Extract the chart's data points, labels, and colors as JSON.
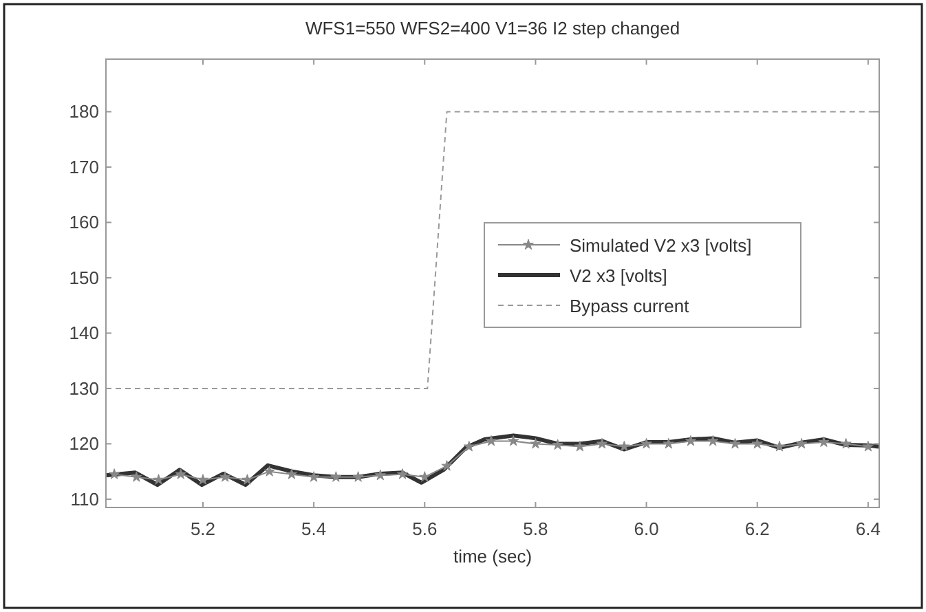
{
  "chart_data": {
    "type": "line",
    "title": "WFS1=550 WFS2=400 V1=36 I2 step changed",
    "xlabel": "time (sec)",
    "xlim": [
      5.025,
      6.42
    ],
    "xticks": [
      {
        "value": 5.2,
        "label": "5.2"
      },
      {
        "value": 5.4,
        "label": "5.4"
      },
      {
        "value": 5.6,
        "label": "5.6"
      },
      {
        "value": 5.8,
        "label": "5.8"
      },
      {
        "value": 6.0,
        "label": "6.0"
      },
      {
        "value": 6.2,
        "label": "6.2"
      },
      {
        "value": 6.4,
        "label": "6.4"
      }
    ],
    "ylim": [
      108.5,
      189.5
    ],
    "yticks": [
      110,
      120,
      130,
      140,
      150,
      160,
      170,
      180
    ],
    "grid": false,
    "legend": "right",
    "series": [
      {
        "name": "Simulated V2 x3 [volts]",
        "color": "#888888",
        "marker": "star",
        "line_style": "solid",
        "x": [
          5.04,
          5.08,
          5.12,
          5.16,
          5.2,
          5.24,
          5.28,
          5.32,
          5.36,
          5.4,
          5.44,
          5.48,
          5.52,
          5.56,
          5.6,
          5.64,
          5.68,
          5.72,
          5.76,
          5.8,
          5.84,
          5.88,
          5.92,
          5.96,
          6.0,
          6.04,
          6.08,
          6.12,
          6.16,
          6.2,
          6.24,
          6.28,
          6.32,
          6.36,
          6.4
        ],
        "values": [
          114.5,
          114,
          113.5,
          114.5,
          113.5,
          114,
          113.5,
          115,
          114.5,
          114,
          114,
          114,
          114.3,
          114.5,
          114,
          116,
          119.5,
          120.5,
          120.5,
          120,
          119.8,
          119.5,
          120,
          119.5,
          120,
          120,
          120.5,
          120.5,
          120,
          120,
          119.5,
          120,
          120.3,
          120,
          119.5
        ]
      },
      {
        "name": "V2 x3 [volts]",
        "color": "#333333",
        "marker": "none",
        "line_style": "solid",
        "x": [
          5.025,
          5.078,
          5.118,
          5.158,
          5.198,
          5.237,
          5.277,
          5.317,
          5.361,
          5.4,
          5.44,
          5.48,
          5.52,
          5.56,
          5.594,
          5.634,
          5.674,
          5.708,
          5.76,
          5.8,
          5.84,
          5.88,
          5.92,
          5.96,
          6.0,
          6.04,
          6.08,
          6.12,
          6.16,
          6.2,
          6.24,
          6.28,
          6.32,
          6.36,
          6.4,
          6.42
        ],
        "values": [
          114.3,
          114.8,
          112.6,
          115.3,
          112.6,
          114.6,
          112.6,
          116.1,
          115,
          114.3,
          114,
          114,
          114.6,
          114.8,
          113,
          115.3,
          119.3,
          120.8,
          121.5,
          121,
          120,
          120,
          120.5,
          119,
          120.3,
          120.3,
          120.8,
          121,
          120.2,
          120.6,
          119.3,
          120.2,
          120.8,
          119.8,
          119.7,
          119.5
        ]
      },
      {
        "name": "Bypass current",
        "color": "#999999",
        "marker": "none",
        "line_style": "dashed",
        "x": [
          5.025,
          5.605,
          5.64,
          6.42
        ],
        "values": [
          130,
          130,
          180,
          180
        ]
      }
    ]
  }
}
